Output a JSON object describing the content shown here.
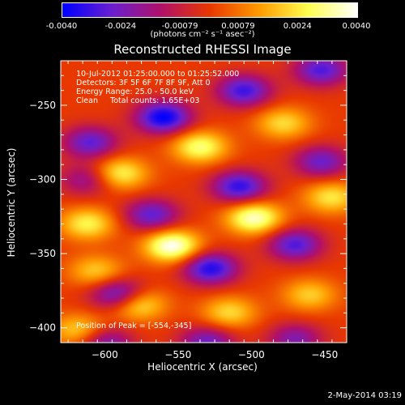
{
  "chart_data": {
    "type": "heatmap",
    "title": "Reconstructed RHESSI Image",
    "xlabel": "Heliocentric X (arcsec)",
    "ylabel": "Heliocentric Y (arcsec)",
    "xlim": [
      -630,
      -435
    ],
    "ylim": [
      -410,
      -220
    ],
    "x_ticks": [
      "-600",
      "-550",
      "-500",
      "-450"
    ],
    "y_ticks": [
      "-250",
      "-300",
      "-350",
      "-400"
    ],
    "colorbar": {
      "ticks": [
        "-0.0040",
        "-0.0024",
        "-0.00079",
        "0.00079",
        "0.0024",
        "0.0040"
      ],
      "units_label": "(photons cm⁻² s⁻¹ asec⁻²)",
      "range": [
        -0.004,
        0.004
      ],
      "colors": [
        "#0000ff",
        "#6a1fd0",
        "#b0106a",
        "#e83800",
        "#ff9a00",
        "#ffff50",
        "#ffffff"
      ]
    },
    "peak": {
      "x": -554,
      "y": -345
    },
    "lobes": [
      {
        "x": -560,
        "y": -258,
        "v": -0.004
      },
      {
        "x": -505,
        "y": -240,
        "v": -0.0032
      },
      {
        "x": -452,
        "y": -226,
        "v": -0.003
      },
      {
        "x": -610,
        "y": -275,
        "v": -0.0028
      },
      {
        "x": -612,
        "y": -330,
        "v": 0.0026
      },
      {
        "x": -590,
        "y": -296,
        "v": 0.0028
      },
      {
        "x": -535,
        "y": -278,
        "v": 0.003
      },
      {
        "x": -478,
        "y": -262,
        "v": 0.0022
      },
      {
        "x": -568,
        "y": -324,
        "v": -0.0028
      },
      {
        "x": -508,
        "y": -305,
        "v": -0.0034
      },
      {
        "x": -452,
        "y": -288,
        "v": -0.0026
      },
      {
        "x": -612,
        "y": -300,
        "v": -0.002
      },
      {
        "x": -554,
        "y": -345,
        "v": 0.004
      },
      {
        "x": -498,
        "y": -326,
        "v": 0.0036
      },
      {
        "x": -445,
        "y": -312,
        "v": 0.0024
      },
      {
        "x": -606,
        "y": -362,
        "v": 0.002
      },
      {
        "x": -590,
        "y": -378,
        "v": -0.0034
      },
      {
        "x": -528,
        "y": -360,
        "v": -0.0036
      },
      {
        "x": -470,
        "y": -344,
        "v": -0.003
      },
      {
        "x": -618,
        "y": -402,
        "v": 0.0022
      },
      {
        "x": -578,
        "y": -384,
        "v": 0.003
      },
      {
        "x": -515,
        "y": -390,
        "v": 0.0022
      },
      {
        "x": -460,
        "y": -378,
        "v": 0.002
      },
      {
        "x": -600,
        "y": -410,
        "v": -0.0024
      },
      {
        "x": -530,
        "y": -410,
        "v": -0.0026
      },
      {
        "x": -470,
        "y": -408,
        "v": -0.0022
      }
    ]
  },
  "overlay": {
    "time_range": "10-Jul-2012 01:25:00.000 to 01:25:52.000",
    "detectors": "Detectors: 3F 5F 6F 7F 8F 9F, Att 0",
    "energy_range": "Energy Range: 25.0 - 50.0 keV",
    "algorithm": "Clean     Total counts: 1.65E+03",
    "peak_text": "Position of Peak = [-554,-345]"
  },
  "footer_timestamp": "2-May-2014 03:19"
}
